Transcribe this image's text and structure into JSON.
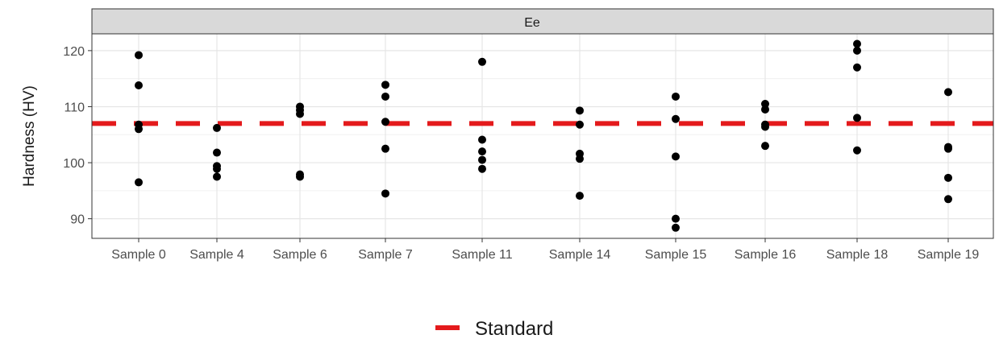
{
  "chart_data": {
    "type": "scatter",
    "facet_label": "Ee",
    "ylabel": "Hardness (HV)",
    "xlabel": "",
    "ylim": [
      86.5,
      123
    ],
    "yticks": [
      90,
      100,
      110,
      120
    ],
    "grid": true,
    "legend_position": "bottom",
    "categories": [
      "Sample 0",
      "Sample 4",
      "Sample 6",
      "Sample 7",
      "Sample 11",
      "Sample 14",
      "Sample 15",
      "Sample 16",
      "Sample 18",
      "Sample 19"
    ],
    "points": [
      [
        119.2,
        113.8,
        106.8,
        106.0,
        96.5
      ],
      [
        106.2,
        101.8,
        99.4,
        98.9,
        97.5
      ],
      [
        110.0,
        109.4,
        108.7,
        97.9,
        97.5
      ],
      [
        113.9,
        111.8,
        107.3,
        102.5,
        94.5
      ],
      [
        118.0,
        104.1,
        102.0,
        100.5,
        98.9
      ],
      [
        109.3,
        106.8,
        101.6,
        100.7,
        94.1
      ],
      [
        111.8,
        107.8,
        101.1,
        90.0,
        88.4
      ],
      [
        110.5,
        109.5,
        106.8,
        106.4,
        103.0
      ],
      [
        121.2,
        120.0,
        117.0,
        108.0,
        102.2
      ],
      [
        112.6,
        102.8,
        102.5,
        97.3,
        93.5
      ]
    ],
    "reference_line": {
      "name": "Standard",
      "value": 107,
      "color": "#e41a1c"
    },
    "point_color": "#000000"
  }
}
